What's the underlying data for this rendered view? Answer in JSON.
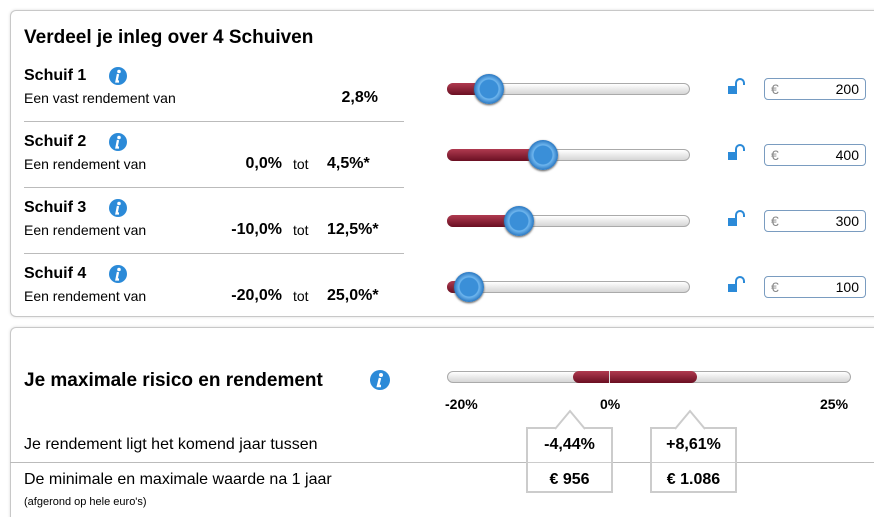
{
  "title": "Verdeel je inleg over 4 Schuiven",
  "rows": [
    {
      "name": "Schuif 1",
      "description": "Een vast rendement van",
      "rate": "2,8%",
      "currency": "€",
      "amount": "200"
    },
    {
      "name": "Schuif 2",
      "description": "Een rendement van",
      "min": "0,0%",
      "to": "tot",
      "max": "4,5%*",
      "currency": "€",
      "amount": "400"
    },
    {
      "name": "Schuif 3",
      "description": "Een rendement van",
      "min": "-10,0%",
      "to": "tot",
      "max": "12,5%*",
      "currency": "€",
      "amount": "300"
    },
    {
      "name": "Schuif 4",
      "description": "Een rendement van",
      "min": "-20,0%",
      "to": "tot",
      "max": "25,0%*",
      "currency": "€",
      "amount": "100"
    }
  ],
  "summary": {
    "title": "Je maximale risico en rendement",
    "scale": [
      "-20%",
      "0%",
      "25%"
    ],
    "lines": [
      {
        "label": "Je rendement ligt het komend jaar tussen",
        "low": "-4,44%",
        "high": "+8,61%"
      },
      {
        "label": "De minimale en maximale waarde na 1 jaar",
        "low": "€ 956",
        "high": "€ 1.086"
      }
    ],
    "note": "(afgerond op hele euro's)"
  }
}
